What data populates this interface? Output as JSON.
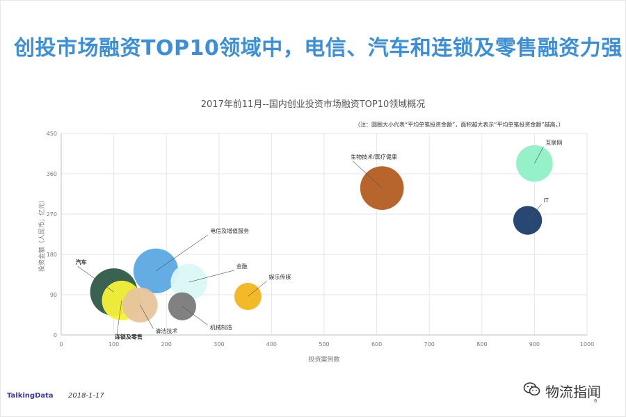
{
  "header": {
    "title": "创投市场融资TOP10领域中，电信、汽车和连锁及零售融资力强"
  },
  "chart_data": {
    "type": "scatter",
    "title": "2017年前11月--国内创业投资市场融资TOP10领域概况",
    "xlabel": "投资案例数",
    "ylabel": "投资金额（人民币；亿元）",
    "xlim": [
      0,
      1000
    ],
    "ylim": [
      0,
      450
    ],
    "x_ticks": [
      0,
      100,
      200,
      300,
      400,
      500,
      600,
      700,
      800,
      900,
      1000
    ],
    "y_ticks": [
      0,
      90,
      180,
      270,
      360,
      450
    ],
    "grid": true,
    "note": "（注：圆圈大小代表“平均单笔投资金额”，面积越大表示“平均单笔投资金额”越高。）",
    "series": [
      {
        "name": "汽车",
        "x": 100,
        "y": 96,
        "size": 1.0,
        "color": "#2e5a47"
      },
      {
        "name": "电信及增值服务",
        "x": 180,
        "y": 143,
        "size": 0.9,
        "color": "#5ba9e3"
      },
      {
        "name": "金融",
        "x": 243,
        "y": 118,
        "size": 0.6,
        "color": "#d9f7f6"
      },
      {
        "name": "连锁及零售",
        "x": 115,
        "y": 77,
        "size": 0.7,
        "color": "#f7f238"
      },
      {
        "name": "清洁技术",
        "x": 150,
        "y": 67,
        "size": 0.55,
        "color": "#e7c49c"
      },
      {
        "name": "机械制造",
        "x": 230,
        "y": 64,
        "size": 0.35,
        "color": "#7a7a7a"
      },
      {
        "name": "娱乐传媒",
        "x": 355,
        "y": 86,
        "size": 0.33,
        "color": "#f2b51e"
      },
      {
        "name": "生物技术/医疗健康",
        "x": 610,
        "y": 328,
        "size": 0.85,
        "color": "#b35d22"
      },
      {
        "name": "互联网",
        "x": 900,
        "y": 383,
        "size": 0.6,
        "color": "#8ff0c5"
      },
      {
        "name": "IT",
        "x": 887,
        "y": 256,
        "size": 0.37,
        "color": "#1d3d6b"
      }
    ]
  },
  "footer": {
    "brand": "TalkingData",
    "date": "2018-1-17",
    "watermark": "物流指闻",
    "page": "6"
  }
}
